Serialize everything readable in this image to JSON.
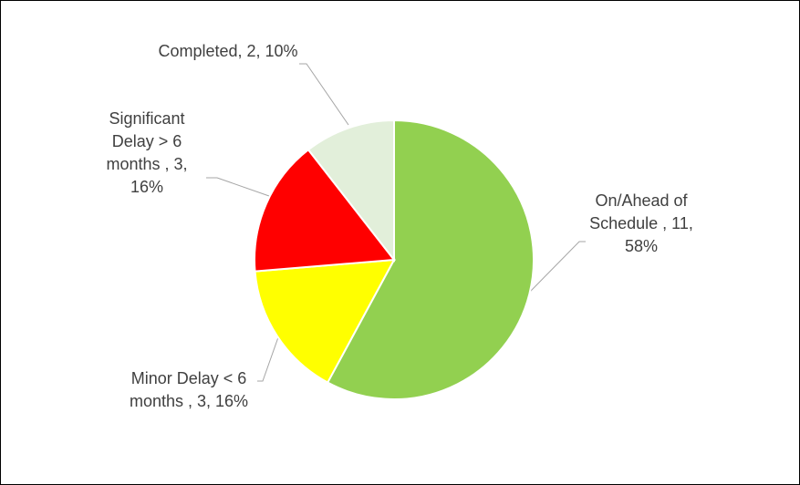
{
  "chart_data": {
    "type": "pie",
    "values": [
      11,
      3,
      3,
      2
    ],
    "value_labels": [
      "On/Ahead of Schedule , 11, 58%",
      "Minor Delay < 6 months , 3, 16%",
      "Significant Delay > 6 months , 3, 16%",
      "Completed, 2, 10%"
    ],
    "colors": [
      "#92d050",
      "#ffff00",
      "#ff0000",
      "#e2efda"
    ]
  }
}
